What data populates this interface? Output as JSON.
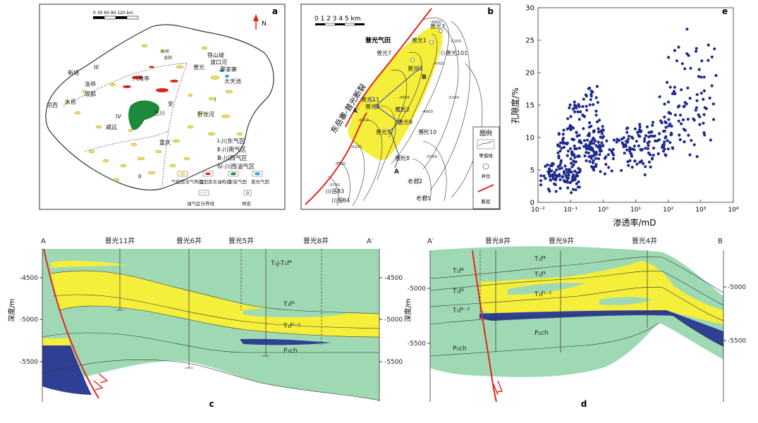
{
  "panel_a": {
    "label": "a",
    "scale_text": "0 30 60 90 120 km",
    "north": "N",
    "places": [
      "元坝",
      "龙岗",
      "铁山坡",
      "渡口河",
      "罗家寨",
      "普光",
      "大天池",
      "八角亭",
      "新场",
      "洛带",
      "成都",
      "邛西",
      "大邑",
      "合川",
      "安",
      "卧龙河",
      "威远",
      "重庆"
    ],
    "regions": [
      "III",
      "IV",
      "I",
      "II"
    ],
    "region_legend": [
      "Ⅰ-川东气区",
      "Ⅱ-川南气区",
      "Ⅲ-川西气区",
      "Ⅳ-川西油气区"
    ],
    "legend": [
      "气田及含气构造",
      "油田及含油构造",
      "安岳气田",
      "普光气田",
      "油气区分界线",
      "地名"
    ]
  },
  "panel_b": {
    "label": "b",
    "scale_text": "0 1 2 3 4 5 km",
    "field_name": "普光气田",
    "fault_name": "东岳寨-普光断裂",
    "wells": [
      "普光3",
      "普光1",
      "普光101",
      "普光7",
      "普光4",
      "B",
      "普光11",
      "A′",
      "普光6",
      "普光2",
      "普光9",
      "普光5",
      "普光10",
      "普光8",
      "A",
      "老君2",
      "川岳83",
      "川岳84",
      "老君1"
    ],
    "contours": [
      "-4900",
      "-5100",
      "-4700",
      "-4500",
      "-4900",
      "-5100",
      "-5000",
      "-3900",
      "-3700",
      "-4100",
      "-4300"
    ],
    "legend_title": "图例",
    "legend_items": [
      "等值线",
      "井位",
      "断层"
    ]
  },
  "chart_data": {
    "type": "scatter",
    "label": "e",
    "xlabel": "渗透率/mD",
    "ylabel": "孔隙度/%",
    "xscale": "log",
    "xlim": [
      0.01,
      10000
    ],
    "ylim": [
      0,
      30
    ],
    "x_ticks": [
      "10⁻²",
      "10⁻¹",
      "10⁰",
      "10¹",
      "10²",
      "10³",
      "10⁴"
    ],
    "y_ticks": [
      "0",
      "5",
      "10",
      "15",
      "20",
      "25",
      "30"
    ],
    "point_color": "#1f2a8c",
    "clusters": [
      {
        "x_range": [
          0.012,
          0.2
        ],
        "y_range": [
          1.0,
          7.0
        ],
        "n": 90
      },
      {
        "x_range": [
          0.04,
          1.0
        ],
        "y_range": [
          4.0,
          13.0
        ],
        "n": 130
      },
      {
        "x_range": [
          0.08,
          0.8
        ],
        "y_range": [
          11.0,
          19.0
        ],
        "n": 45
      },
      {
        "x_range": [
          0.3,
          40
        ],
        "y_range": [
          4.0,
          12.0
        ],
        "n": 90
      },
      {
        "x_range": [
          5,
          150
        ],
        "y_range": [
          6.0,
          13.0
        ],
        "n": 60
      },
      {
        "x_range": [
          50,
          2500
        ],
        "y_range": [
          6.0,
          20.0
        ],
        "n": 70
      },
      {
        "x_range": [
          100,
          3500
        ],
        "y_range": [
          14.0,
          29.0
        ],
        "n": 25
      }
    ]
  },
  "panel_c": {
    "label": "c",
    "left_end": "A",
    "right_end": "A′",
    "wells": [
      "普光11井",
      "普光6井",
      "普光5井",
      "普光8井"
    ],
    "depth_label": "深度/m",
    "left_ticks": [
      "-4500",
      "-5000",
      "-5500"
    ],
    "right_ticks": [
      "-4500",
      "-5000",
      "-5500"
    ],
    "layers": [
      "T₁j-T₁f⁴",
      "T₁f³",
      "T₁f¹⁻²",
      "P₂ch"
    ]
  },
  "panel_d": {
    "label": "d",
    "left_end": "A′",
    "right_end": "B",
    "wells": [
      "普光8井",
      "普光9井",
      "普光4井"
    ],
    "depth_label": "深度/m",
    "left_ticks": [
      "-5000",
      "-5500"
    ],
    "right_ticks": [
      "-5000",
      "-5500"
    ],
    "layers": [
      "T₁f⁴",
      "T₁f³",
      "T₁f¹⁻²",
      "P₂ch"
    ],
    "left_layers": [
      "T₁f⁴",
      "T₁f³",
      "T₁f¹⁻²",
      "P₂ch"
    ]
  },
  "colors": {
    "green": "#9fd9b4",
    "yellow": "#f5ee3a",
    "blue": "#2f3f93",
    "fault": "#e0261c",
    "oil_red": "#d9261c",
    "gas_yellow": "#f0e05a",
    "anyue_green": "#1c8a3a",
    "puguang_blue": "#2aa3d8"
  }
}
